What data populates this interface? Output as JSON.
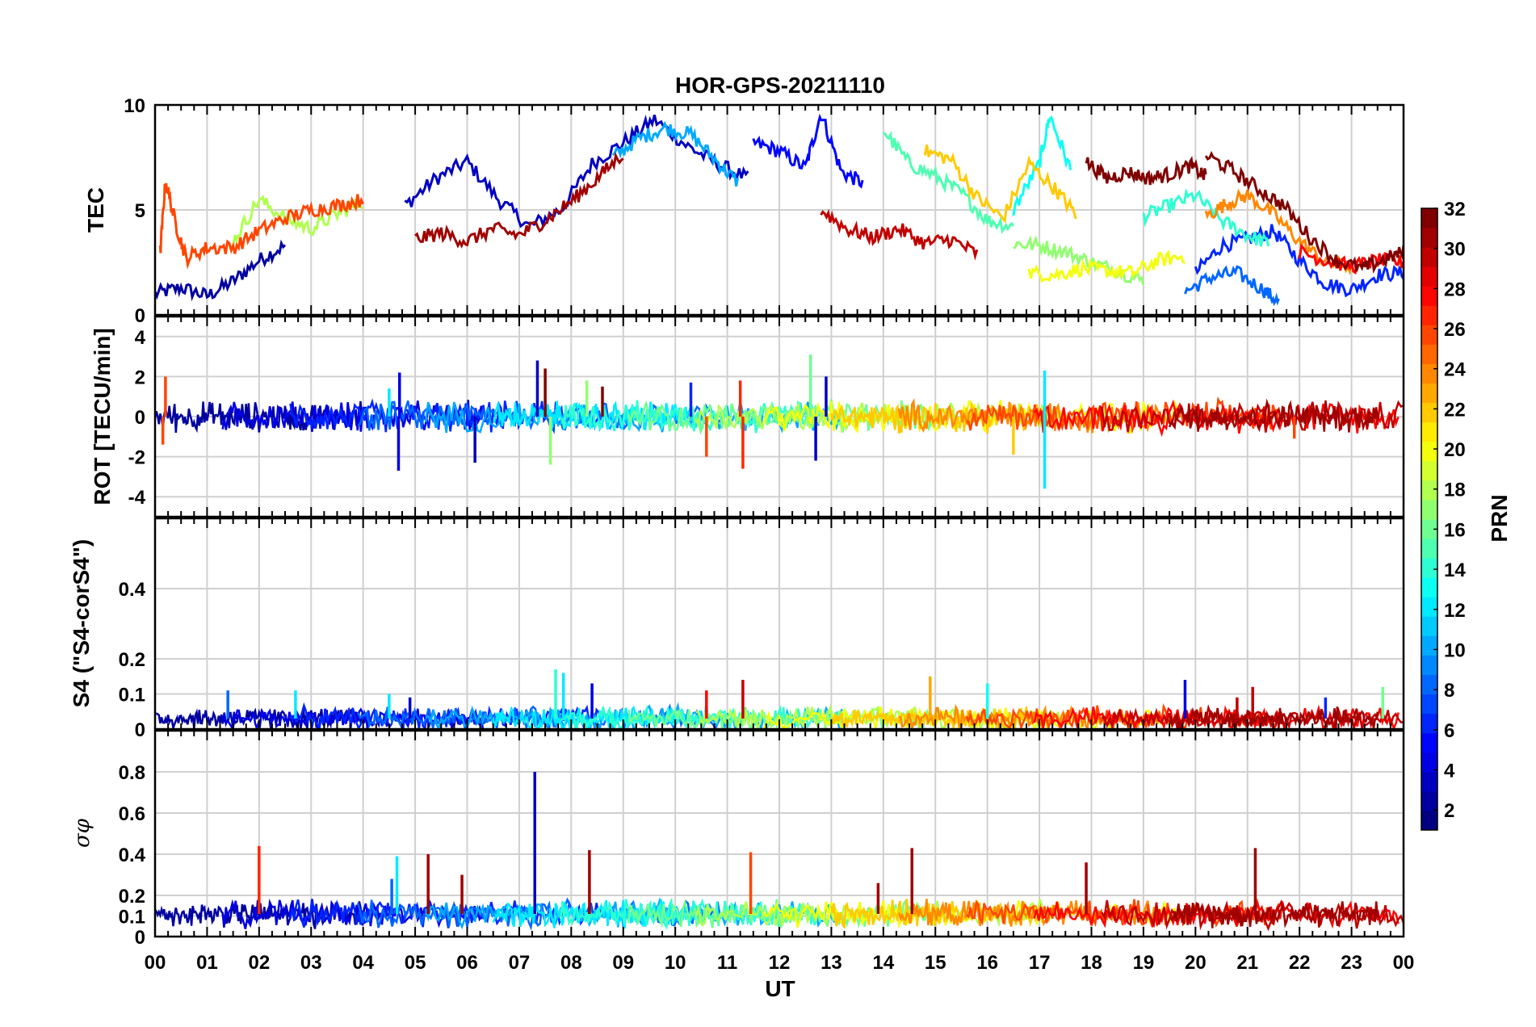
{
  "figure": {
    "title": "HOR-GPS-20211110",
    "xlabel": "UT",
    "x_ticks": [
      "00",
      "01",
      "02",
      "03",
      "04",
      "05",
      "06",
      "07",
      "08",
      "09",
      "10",
      "11",
      "12",
      "13",
      "14",
      "15",
      "16",
      "17",
      "18",
      "19",
      "20",
      "21",
      "22",
      "23",
      "00"
    ],
    "colorbar": {
      "label": "PRN",
      "ticks": [
        "2",
        "4",
        "6",
        "8",
        "10",
        "12",
        "14",
        "16",
        "18",
        "20",
        "22",
        "24",
        "26",
        "28",
        "30",
        "32"
      ],
      "range": [
        1,
        32
      ]
    }
  },
  "chart_data": [
    {
      "type": "line",
      "name": "tec",
      "ylabel": "TEC",
      "ylim": [
        0,
        10
      ],
      "y_ticks": [
        "0",
        "5",
        "10"
      ],
      "series": [
        {
          "prn": 2,
          "x": [
            0.0,
            0.5,
            1.0,
            1.5,
            2.0,
            2.5
          ],
          "y": [
            1.0,
            1.3,
            0.9,
            1.6,
            2.6,
            3.3
          ]
        },
        {
          "prn": 3,
          "x": [
            4.8,
            5.4,
            6.0,
            6.6,
            7.2,
            7.8,
            8.4,
            9.0,
            9.6,
            10.2,
            10.8,
            11.4
          ],
          "y": [
            5.2,
            6.5,
            7.3,
            5.5,
            4.2,
            5.0,
            7.2,
            8.2,
            9.3,
            8.1,
            7.2,
            6.5
          ]
        },
        {
          "prn": 5,
          "x": [
            11.5,
            12.0,
            12.5,
            12.8,
            13.2,
            13.6
          ],
          "y": [
            8.2,
            7.8,
            7.0,
            9.6,
            6.8,
            6.3
          ]
        },
        {
          "prn": 6,
          "x": [
            20.0,
            20.5,
            21.0,
            21.5,
            22.0,
            22.5,
            23.0,
            23.5,
            24.0
          ],
          "y": [
            2.0,
            3.3,
            3.6,
            4.0,
            2.6,
            1.5,
            1.2,
            1.9,
            2.0
          ]
        },
        {
          "prn": 8,
          "x": [
            19.8,
            20.3,
            20.8,
            21.3,
            21.6
          ],
          "y": [
            1.1,
            1.8,
            2.0,
            1.2,
            0.6
          ]
        },
        {
          "prn": 10,
          "x": [
            8.8,
            9.3,
            9.8,
            10.3,
            10.8,
            11.2
          ],
          "y": [
            7.5,
            8.4,
            8.9,
            8.6,
            7.3,
            6.3
          ]
        },
        {
          "prn": 13,
          "x": [
            16.5,
            17.0,
            17.2,
            17.6
          ],
          "y": [
            5.0,
            7.2,
            9.5,
            6.9
          ]
        },
        {
          "prn": 14,
          "x": [
            19.0,
            19.5,
            20.0,
            20.5,
            21.0,
            21.4
          ],
          "y": [
            4.7,
            5.2,
            5.7,
            4.5,
            3.8,
            3.4
          ]
        },
        {
          "prn": 15,
          "x": [
            14.0,
            14.5,
            15.0,
            15.5,
            16.0,
            16.5
          ],
          "y": [
            8.8,
            7.2,
            6.6,
            5.8,
            4.5,
            4.2
          ]
        },
        {
          "prn": 17,
          "x": [
            16.5,
            17.0,
            17.5,
            18.0,
            18.5,
            19.0
          ],
          "y": [
            3.4,
            3.3,
            3.0,
            2.5,
            2.1,
            1.6
          ]
        },
        {
          "prn": 18,
          "x": [
            1.5,
            2.0,
            2.5,
            3.0,
            3.5,
            4.0
          ],
          "y": [
            3.5,
            5.5,
            4.6,
            4.1,
            4.8,
            5.4
          ]
        },
        {
          "prn": 20,
          "x": [
            16.8,
            17.3,
            17.8,
            18.3,
            18.8,
            19.3,
            19.8
          ],
          "y": [
            2.0,
            1.9,
            2.2,
            2.1,
            2.0,
            2.6,
            2.8
          ]
        },
        {
          "prn": 22,
          "x": [
            14.8,
            15.3,
            15.8,
            16.3,
            16.8,
            17.3,
            17.7
          ],
          "y": [
            7.8,
            7.4,
            5.6,
            4.6,
            7.2,
            6.0,
            4.8
          ]
        },
        {
          "prn": 24,
          "x": [
            20.2,
            20.6,
            21.0,
            21.5,
            22.0,
            22.5,
            23.0
          ],
          "y": [
            4.7,
            5.3,
            5.7,
            4.8,
            3.5,
            2.5,
            2.3
          ]
        },
        {
          "prn": 26,
          "x": [
            0.1,
            0.2,
            0.4,
            0.6,
            1.0,
            1.5,
            2.0,
            2.5,
            3.0,
            3.5,
            4.0
          ],
          "y": [
            3.0,
            6.4,
            4.3,
            2.7,
            3.2,
            3.2,
            4.0,
            4.6,
            5.0,
            5.2,
            5.5
          ]
        },
        {
          "prn": 28,
          "x": [
            22.0,
            22.5,
            23.0,
            23.5,
            24.0
          ],
          "y": [
            3.0,
            2.6,
            2.3,
            2.6,
            2.5
          ]
        },
        {
          "prn": 30,
          "x": [
            12.8,
            13.3,
            13.8,
            14.3,
            14.8,
            15.3,
            15.8
          ],
          "y": [
            5.0,
            4.1,
            3.7,
            4.1,
            3.4,
            3.6,
            2.9
          ]
        },
        {
          "prn": 31,
          "x": [
            5.0,
            5.5,
            6.0,
            6.5,
            7.0,
            7.5,
            8.0,
            8.5,
            9.0
          ],
          "y": [
            3.6,
            3.9,
            3.5,
            4.1,
            3.8,
            4.5,
            5.4,
            6.5,
            7.7
          ]
        },
        {
          "prn": 32,
          "x": [
            17.9,
            18.3,
            18.7,
            19.1,
            19.5,
            19.9,
            20.2
          ],
          "y": [
            7.3,
            6.5,
            6.8,
            6.5,
            6.7,
            7.1,
            6.6
          ]
        },
        {
          "prn": 32,
          "x": [
            20.2,
            20.7,
            21.2,
            21.7,
            22.2,
            22.7,
            23.2,
            23.6,
            24.0
          ],
          "y": [
            7.6,
            6.9,
            6.0,
            5.2,
            3.7,
            2.6,
            2.2,
            2.6,
            3.0
          ]
        }
      ]
    },
    {
      "type": "line",
      "name": "rot",
      "ylabel": "ROT [TECU/min]",
      "ylim": [
        -5,
        5
      ],
      "y_ticks": [
        "-4",
        "-2",
        "0",
        "2",
        "4"
      ],
      "spikes": [
        {
          "prn": 4,
          "x": 4.7,
          "y": 2.2
        },
        {
          "prn": 4,
          "x": 4.68,
          "y": -2.7
        },
        {
          "prn": 12,
          "x": 4.5,
          "y": 1.4
        },
        {
          "prn": 3,
          "x": 6.15,
          "y": -2.3
        },
        {
          "prn": 3,
          "x": 7.35,
          "y": 2.8
        },
        {
          "prn": 32,
          "x": 7.5,
          "y": 2.4
        },
        {
          "prn": 17,
          "x": 7.6,
          "y": -2.4
        },
        {
          "prn": 17,
          "x": 8.3,
          "y": 1.8
        },
        {
          "prn": 32,
          "x": 8.6,
          "y": 1.5
        },
        {
          "prn": 6,
          "x": 10.3,
          "y": 1.7
        },
        {
          "prn": 26,
          "x": 10.6,
          "y": -2.0
        },
        {
          "prn": 27,
          "x": 11.3,
          "y": -2.6
        },
        {
          "prn": 27,
          "x": 11.25,
          "y": 1.8
        },
        {
          "prn": 16,
          "x": 12.6,
          "y": 3.1
        },
        {
          "prn": 3,
          "x": 12.9,
          "y": 2.0
        },
        {
          "prn": 3,
          "x": 12.7,
          "y": -2.2
        },
        {
          "prn": 12,
          "x": 17.1,
          "y": 2.3
        },
        {
          "prn": 12,
          "x": 17.1,
          "y": -3.6
        },
        {
          "prn": 22,
          "x": 16.5,
          "y": -1.9
        },
        {
          "prn": 26,
          "x": 21.9,
          "y": -1.1
        },
        {
          "prn": 26,
          "x": 0.2,
          "y": 2.0
        },
        {
          "prn": 26,
          "x": 0.15,
          "y": -1.4
        }
      ]
    },
    {
      "type": "line",
      "name": "s4",
      "ylabel": "S4 (\"S4-corS4\")",
      "ylim": [
        0,
        0.6
      ],
      "y_ticks": [
        "0",
        "0.1",
        "0.2",
        "0.4"
      ],
      "spikes": [
        {
          "prn": 8,
          "x": 1.4,
          "y": 0.11
        },
        {
          "prn": 12,
          "x": 2.7,
          "y": 0.11
        },
        {
          "prn": 12,
          "x": 4.5,
          "y": 0.1
        },
        {
          "prn": 3,
          "x": 4.9,
          "y": 0.09
        },
        {
          "prn": 14,
          "x": 7.7,
          "y": 0.17
        },
        {
          "prn": 12,
          "x": 7.85,
          "y": 0.16
        },
        {
          "prn": 4,
          "x": 8.4,
          "y": 0.13
        },
        {
          "prn": 28,
          "x": 10.6,
          "y": 0.11
        },
        {
          "prn": 30,
          "x": 11.3,
          "y": 0.14
        },
        {
          "prn": 23,
          "x": 14.9,
          "y": 0.15
        },
        {
          "prn": 13,
          "x": 16.0,
          "y": 0.13
        },
        {
          "prn": 4,
          "x": 19.8,
          "y": 0.14
        },
        {
          "prn": 30,
          "x": 20.8,
          "y": 0.09
        },
        {
          "prn": 30,
          "x": 21.1,
          "y": 0.12
        },
        {
          "prn": 6,
          "x": 22.5,
          "y": 0.09
        },
        {
          "prn": 16,
          "x": 23.6,
          "y": 0.12
        }
      ]
    },
    {
      "type": "line",
      "name": "sigma_phi",
      "ylabel": "σφ",
      "ylim": [
        0,
        1.0
      ],
      "y_ticks": [
        "0",
        "0.1",
        "0.2",
        "0.4",
        "0.6",
        "0.8"
      ],
      "spikes": [
        {
          "prn": 27,
          "x": 2.0,
          "y": 0.44
        },
        {
          "prn": 12,
          "x": 4.65,
          "y": 0.39
        },
        {
          "prn": 31,
          "x": 5.25,
          "y": 0.4
        },
        {
          "prn": 31,
          "x": 5.9,
          "y": 0.3
        },
        {
          "prn": 3,
          "x": 7.3,
          "y": 0.8
        },
        {
          "prn": 31,
          "x": 8.35,
          "y": 0.42
        },
        {
          "prn": 26,
          "x": 11.45,
          "y": 0.41
        },
        {
          "prn": 31,
          "x": 14.55,
          "y": 0.43
        },
        {
          "prn": 31,
          "x": 17.9,
          "y": 0.36
        },
        {
          "prn": 31,
          "x": 21.15,
          "y": 0.43
        },
        {
          "prn": 8,
          "x": 4.55,
          "y": 0.28
        },
        {
          "prn": 31,
          "x": 13.9,
          "y": 0.26
        }
      ]
    }
  ]
}
